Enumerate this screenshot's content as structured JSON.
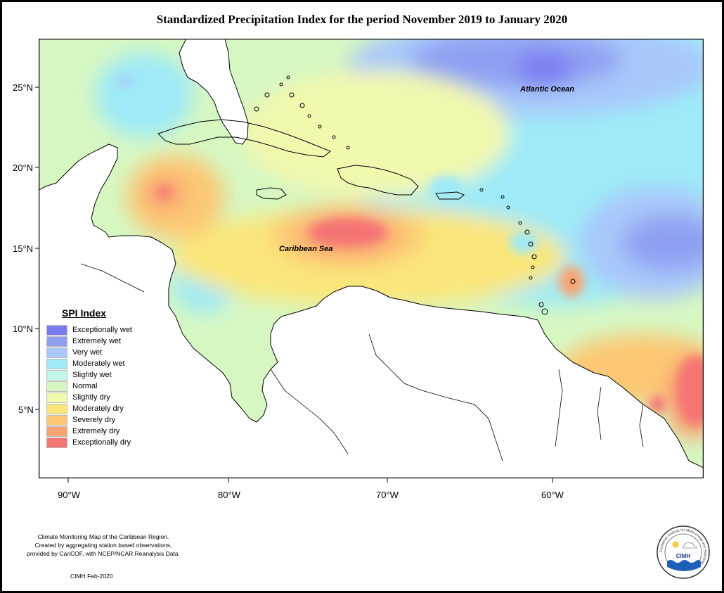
{
  "title": "Standardized Precipitation Index for the period November 2019 to January 2020",
  "map": {
    "lat_ticks": [
      {
        "lat": 25,
        "label": "25°N"
      },
      {
        "lat": 20,
        "label": "20°N"
      },
      {
        "lat": 15,
        "label": "15°N"
      },
      {
        "lat": 10,
        "label": "10°N"
      },
      {
        "lat": 5,
        "label": "5°N"
      }
    ],
    "lon_ticks": [
      {
        "lon": -90,
        "label": "90°W"
      },
      {
        "lon": -80,
        "label": "80°W"
      },
      {
        "lon": -70,
        "label": "70°W"
      },
      {
        "lon": -60,
        "label": "60°W"
      }
    ],
    "labels": {
      "atlantic": "Atlantic Ocean",
      "caribbean": "Caribbean Sea"
    }
  },
  "legend": {
    "title": "SPI Index",
    "items": [
      {
        "label": "Exceptionally wet",
        "color": "#7b7bf0"
      },
      {
        "label": "Extremely wet",
        "color": "#8fa0f2"
      },
      {
        "label": "Very wet",
        "color": "#a8c8fa"
      },
      {
        "label": "Moderately wet",
        "color": "#9eeaf8"
      },
      {
        "label": "Slightly wet",
        "color": "#c2f6e6"
      },
      {
        "label": "Normal",
        "color": "#d6f7c2"
      },
      {
        "label": "Slightly dry",
        "color": "#f2f8ae"
      },
      {
        "label": "Moderately dry",
        "color": "#fbe67a"
      },
      {
        "label": "Severely dry",
        "color": "#fcc874"
      },
      {
        "label": "Extremely dry",
        "color": "#f9a472"
      },
      {
        "label": "Exceptionally dry",
        "color": "#f57575"
      }
    ]
  },
  "credits": {
    "line1": "Climate Monitoring Map of the Caribbean Region.",
    "line2": "Created by aggregating station based observations,",
    "line3": "provided by CariCOF, with NCEP/NCAR Reanalysis Data.",
    "stamp": "CIMH Feb-2020"
  },
  "logo": {
    "text": "CIMH",
    "ring_text": "Caribbean Institute for Meteorology and Hydrology"
  }
}
